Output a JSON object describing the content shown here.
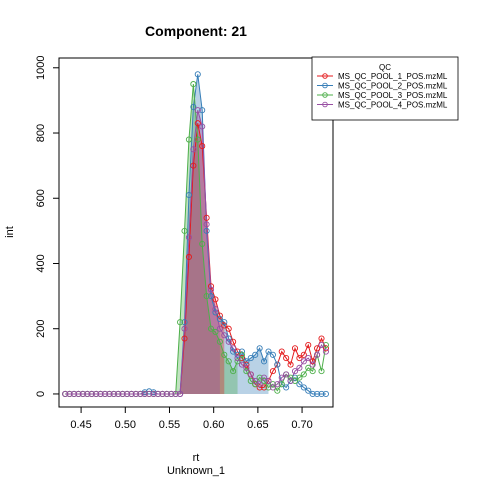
{
  "chart_data": {
    "type": "line",
    "title": "Component: 21",
    "xlabel": "rt",
    "xlabel_sub": "Unknown_1",
    "ylabel": "int",
    "xlim": [
      0.425,
      0.735
    ],
    "ylim": [
      -40,
      1030
    ],
    "xticks": [
      "0.45",
      "0.50",
      "0.55",
      "0.60",
      "0.65",
      "0.70"
    ],
    "yticks": [
      "0",
      "200",
      "400",
      "600",
      "800",
      "1000"
    ],
    "grid": false,
    "legend": {
      "title": "QC",
      "placement": "top-right",
      "entries": [
        "MS_QC_POOL_1_POS.mzML",
        "MS_QC_POOL_2_POS.mzML",
        "MS_QC_POOL_3_POS.mzML",
        "MS_QC_POOL_4_POS.mzML"
      ]
    },
    "series": [
      {
        "name": "MS_QC_POOL_1_POS.mzML",
        "color": "#E41A1C",
        "marker": "circle",
        "x": [
          0.432,
          0.437,
          0.442,
          0.447,
          0.452,
          0.457,
          0.462,
          0.467,
          0.472,
          0.477,
          0.482,
          0.487,
          0.492,
          0.497,
          0.502,
          0.507,
          0.512,
          0.517,
          0.522,
          0.527,
          0.532,
          0.537,
          0.542,
          0.547,
          0.552,
          0.557,
          0.562,
          0.567,
          0.572,
          0.577,
          0.582,
          0.587,
          0.592,
          0.597,
          0.602,
          0.607,
          0.612,
          0.617,
          0.622,
          0.627,
          0.632,
          0.637,
          0.642,
          0.647,
          0.652,
          0.657,
          0.662,
          0.667,
          0.672,
          0.677,
          0.682,
          0.687,
          0.692,
          0.697,
          0.702,
          0.707,
          0.712,
          0.717,
          0.722,
          0.727
        ],
        "y": [
          0,
          0,
          0,
          0,
          0,
          0,
          0,
          0,
          0,
          0,
          0,
          0,
          0,
          0,
          0,
          0,
          0,
          0,
          0,
          0,
          0,
          0,
          0,
          0,
          0,
          0,
          0,
          170,
          420,
          700,
          830,
          760,
          540,
          330,
          290,
          240,
          210,
          200,
          160,
          130,
          110,
          90,
          60,
          30,
          20,
          20,
          40,
          70,
          90,
          130,
          110,
          90,
          140,
          110,
          120,
          150,
          100,
          140,
          170,
          140
        ]
      },
      {
        "name": "MS_QC_POOL_2_POS.mzML",
        "color": "#377EB8",
        "marker": "circle",
        "x": [
          0.432,
          0.437,
          0.442,
          0.447,
          0.452,
          0.457,
          0.462,
          0.467,
          0.472,
          0.477,
          0.482,
          0.487,
          0.492,
          0.497,
          0.502,
          0.507,
          0.512,
          0.517,
          0.522,
          0.527,
          0.532,
          0.537,
          0.542,
          0.547,
          0.552,
          0.557,
          0.562,
          0.567,
          0.572,
          0.577,
          0.582,
          0.587,
          0.592,
          0.597,
          0.602,
          0.607,
          0.612,
          0.617,
          0.622,
          0.627,
          0.632,
          0.637,
          0.642,
          0.647,
          0.652,
          0.657,
          0.662,
          0.667,
          0.672,
          0.677,
          0.682,
          0.687,
          0.692,
          0.697,
          0.702,
          0.707,
          0.712,
          0.717,
          0.722,
          0.727
        ],
        "y": [
          0,
          0,
          0,
          0,
          0,
          0,
          0,
          0,
          0,
          0,
          0,
          0,
          0,
          0,
          0,
          0,
          0,
          0,
          5,
          8,
          5,
          0,
          0,
          0,
          0,
          0,
          0,
          220,
          610,
          880,
          980,
          870,
          500,
          300,
          250,
          230,
          220,
          170,
          130,
          120,
          130,
          100,
          110,
          120,
          140,
          100,
          130,
          120,
          90,
          30,
          20,
          40,
          50,
          30,
          20,
          10,
          0,
          0,
          0,
          0
        ]
      },
      {
        "name": "MS_QC_POOL_3_POS.mzML",
        "color": "#4DAF4A",
        "marker": "circle",
        "x": [
          0.432,
          0.437,
          0.442,
          0.447,
          0.452,
          0.457,
          0.462,
          0.467,
          0.472,
          0.477,
          0.482,
          0.487,
          0.492,
          0.497,
          0.502,
          0.507,
          0.512,
          0.517,
          0.522,
          0.527,
          0.532,
          0.537,
          0.542,
          0.547,
          0.552,
          0.557,
          0.562,
          0.567,
          0.572,
          0.577,
          0.582,
          0.587,
          0.592,
          0.597,
          0.602,
          0.607,
          0.612,
          0.617,
          0.622,
          0.627,
          0.632,
          0.637,
          0.642,
          0.647,
          0.652,
          0.657,
          0.662,
          0.667,
          0.672,
          0.677,
          0.682,
          0.687,
          0.692,
          0.697,
          0.702,
          0.707,
          0.712,
          0.717,
          0.722,
          0.727
        ],
        "y": [
          0,
          0,
          0,
          0,
          0,
          0,
          0,
          0,
          0,
          0,
          0,
          0,
          0,
          0,
          0,
          0,
          0,
          0,
          0,
          0,
          0,
          0,
          0,
          0,
          0,
          0,
          220,
          500,
          780,
          950,
          780,
          460,
          300,
          200,
          190,
          160,
          120,
          100,
          70,
          100,
          120,
          70,
          40,
          30,
          50,
          40,
          20,
          30,
          10,
          30,
          60,
          50,
          40,
          50,
          60,
          80,
          70,
          120,
          70,
          150
        ]
      },
      {
        "name": "MS_QC_POOL_4_POS.mzML",
        "color": "#984EA3",
        "marker": "circle",
        "x": [
          0.432,
          0.437,
          0.442,
          0.447,
          0.452,
          0.457,
          0.462,
          0.467,
          0.472,
          0.477,
          0.482,
          0.487,
          0.492,
          0.497,
          0.502,
          0.507,
          0.512,
          0.517,
          0.522,
          0.527,
          0.532,
          0.537,
          0.542,
          0.547,
          0.552,
          0.557,
          0.562,
          0.567,
          0.572,
          0.577,
          0.582,
          0.587,
          0.592,
          0.597,
          0.602,
          0.607,
          0.612,
          0.617,
          0.622,
          0.627,
          0.632,
          0.637,
          0.642,
          0.647,
          0.652,
          0.657,
          0.662,
          0.667,
          0.672,
          0.677,
          0.682,
          0.687,
          0.692,
          0.697,
          0.702,
          0.707,
          0.712,
          0.717,
          0.722,
          0.727
        ],
        "y": [
          0,
          0,
          0,
          0,
          0,
          0,
          0,
          0,
          0,
          0,
          0,
          0,
          0,
          0,
          0,
          0,
          0,
          0,
          0,
          0,
          0,
          0,
          0,
          0,
          0,
          0,
          0,
          200,
          480,
          750,
          870,
          820,
          520,
          320,
          260,
          200,
          180,
          160,
          140,
          110,
          90,
          80,
          60,
          40,
          30,
          50,
          40,
          20,
          30,
          50,
          60,
          40,
          70,
          80,
          100,
          110,
          90,
          120,
          150,
          130
        ]
      }
    ]
  }
}
